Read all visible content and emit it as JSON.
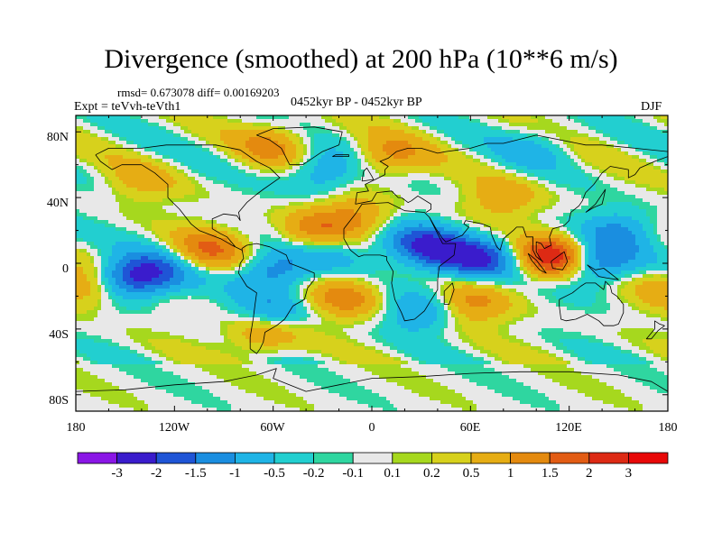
{
  "title": "Divergence (smoothed) at 200 hPa (10**6 m/s)",
  "stats": "rmsd= 0.673078 diff= 0.00169203",
  "experiment": "Expt = teVvh-teVth1",
  "period": "0452kyr BP - 0452kyr BP",
  "season": "DJF",
  "y_ticks": [
    "80N",
    "40N",
    "0",
    "40S",
    "80S"
  ],
  "x_ticks": [
    "180",
    "120W",
    "60W",
    "0",
    "60E",
    "120E",
    "180"
  ],
  "colorbar": {
    "labels": [
      "-3",
      "-2",
      "-1.5",
      "-1",
      "-0.5",
      "-0.2",
      "-0.1",
      "0.1",
      "0.2",
      "0.5",
      "1",
      "1.5",
      "2",
      "3"
    ],
    "colors": [
      "#8a16e6",
      "#3a1ccc",
      "#1f55d6",
      "#1a8ee0",
      "#1fb4e6",
      "#22cfd0",
      "#2fd6a0",
      "#e8e8e8",
      "#a6d81e",
      "#d7d11c",
      "#e6ad14",
      "#e48a0f",
      "#e25c14",
      "#dd2a14",
      "#e80808"
    ]
  },
  "colormap_domain_levels": [
    -3,
    -2,
    -1.5,
    -1,
    -0.5,
    -0.2,
    -0.1,
    0.1,
    0.2,
    0.5,
    1,
    1.5,
    2,
    3
  ],
  "field_features": [
    {
      "lon": -100,
      "lat": 8,
      "value": 1.4
    },
    {
      "lon": -150,
      "lat": -10,
      "value": -2.0
    },
    {
      "lon": -130,
      "lat": -5,
      "value": -1.2
    },
    {
      "lon": -60,
      "lat": -5,
      "value": -1.5
    },
    {
      "lon": -35,
      "lat": 20,
      "value": 1.2
    },
    {
      "lon": -10,
      "lat": 28,
      "value": 1.0
    },
    {
      "lon": -20,
      "lat": 10,
      "value": -0.6
    },
    {
      "lon": 25,
      "lat": 12,
      "value": -1.5
    },
    {
      "lon": 45,
      "lat": 5,
      "value": -1.6
    },
    {
      "lon": 70,
      "lat": 2,
      "value": -1.4
    },
    {
      "lon": 110,
      "lat": 3,
      "value": 2.6
    },
    {
      "lon": 135,
      "lat": 0,
      "value": -1.8
    },
    {
      "lon": 150,
      "lat": 20,
      "value": -1.0
    },
    {
      "lon": -15,
      "lat": -20,
      "value": 1.3
    },
    {
      "lon": -60,
      "lat": -30,
      "value": -1.1
    },
    {
      "lon": -65,
      "lat": -42,
      "value": 1.2
    },
    {
      "lon": -172,
      "lat": -15,
      "value": 1.3
    },
    {
      "lon": 30,
      "lat": -30,
      "value": -1.0
    },
    {
      "lon": 60,
      "lat": -25,
      "value": 1.1
    },
    {
      "lon": -60,
      "lat": 72,
      "value": 1.0
    },
    {
      "lon": -30,
      "lat": 55,
      "value": -1.0
    },
    {
      "lon": 10,
      "lat": 65,
      "value": 1.1
    },
    {
      "lon": 100,
      "lat": 70,
      "value": -0.6
    },
    {
      "lon": -140,
      "lat": 50,
      "value": 0.6
    },
    {
      "lon": 80,
      "lat": 40,
      "value": 0.8
    }
  ]
}
